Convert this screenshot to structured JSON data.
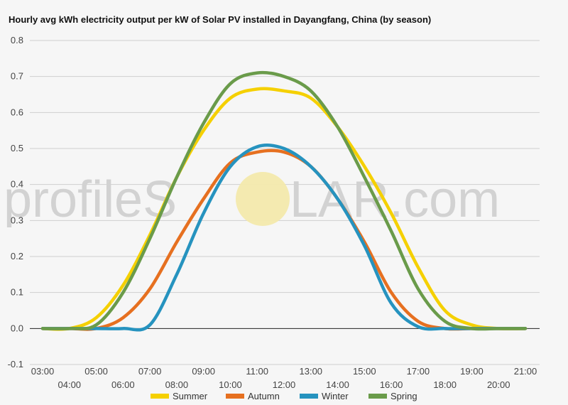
{
  "title": "Hourly avg kWh electricity output per kW of Solar PV installed in Dayangfang, China (by season)",
  "watermark": {
    "left": "profileS",
    "right": "LAR.com"
  },
  "colors": {
    "Summer": "#f5d000",
    "Autumn": "#e67020",
    "Winter": "#2693bf",
    "Spring": "#6a9b4a"
  },
  "chart_data": {
    "type": "line",
    "x": [
      "03:00",
      "04:00",
      "05:00",
      "06:00",
      "07:00",
      "08:00",
      "09:00",
      "10:00",
      "11:00",
      "12:00",
      "13:00",
      "14:00",
      "15:00",
      "16:00",
      "17:00",
      "18:00",
      "19:00",
      "20:00",
      "21:00"
    ],
    "xlabel": "",
    "ylabel": "",
    "ylim": [
      -0.1,
      0.8
    ],
    "yticks": [
      "0.8",
      "0.7",
      "0.6",
      "0.5",
      "0.4",
      "0.3",
      "0.2",
      "0.1",
      "0.0",
      "-0.1"
    ],
    "grid": true,
    "legend": "bottom",
    "series": [
      {
        "name": "Summer",
        "values": [
          0,
          0,
          0.03,
          0.12,
          0.26,
          0.42,
          0.55,
          0.64,
          0.665,
          0.66,
          0.64,
          0.56,
          0.45,
          0.32,
          0.17,
          0.05,
          0.01,
          0,
          0
        ]
      },
      {
        "name": "Autumn",
        "values": [
          0,
          0,
          0,
          0.03,
          0.11,
          0.24,
          0.36,
          0.46,
          0.49,
          0.49,
          0.45,
          0.36,
          0.24,
          0.1,
          0.02,
          0,
          0,
          0,
          0
        ]
      },
      {
        "name": "Winter",
        "values": [
          0,
          0,
          0,
          0,
          0.01,
          0.15,
          0.32,
          0.45,
          0.505,
          0.5,
          0.45,
          0.36,
          0.23,
          0.07,
          0.005,
          0,
          0,
          0,
          0
        ]
      },
      {
        "name": "Spring",
        "values": [
          0,
          0,
          0.01,
          0.1,
          0.25,
          0.42,
          0.57,
          0.68,
          0.71,
          0.7,
          0.66,
          0.56,
          0.42,
          0.27,
          0.11,
          0.02,
          0,
          0,
          0
        ]
      }
    ]
  }
}
